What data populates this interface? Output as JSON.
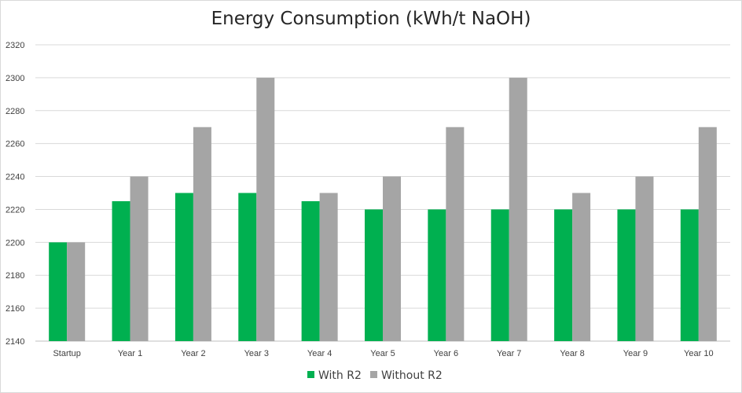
{
  "chart_data": {
    "type": "bar",
    "title": "Energy Consumption (kWh/t NaOH)",
    "xlabel": "",
    "ylabel": "",
    "ylim": [
      2140,
      2320
    ],
    "yticks": [
      2140,
      2160,
      2180,
      2200,
      2220,
      2240,
      2260,
      2280,
      2300,
      2320
    ],
    "grid": true,
    "legend_position": "bottom",
    "categories": [
      "Startup",
      "Year 1",
      "Year 2",
      "Year 3",
      "Year 4",
      "Year 5",
      "Year 6",
      "Year 7",
      "Year 8",
      "Year 9",
      "Year 10"
    ],
    "series": [
      {
        "name": "With R2",
        "color": "#00b050",
        "values": [
          2200,
          2225,
          2230,
          2230,
          2225,
          2220,
          2220,
          2220,
          2220,
          2220,
          2220
        ]
      },
      {
        "name": "Without R2",
        "color": "#a5a5a5",
        "values": [
          2200,
          2240,
          2270,
          2300,
          2230,
          2240,
          2270,
          2300,
          2230,
          2240,
          2270
        ]
      }
    ]
  }
}
